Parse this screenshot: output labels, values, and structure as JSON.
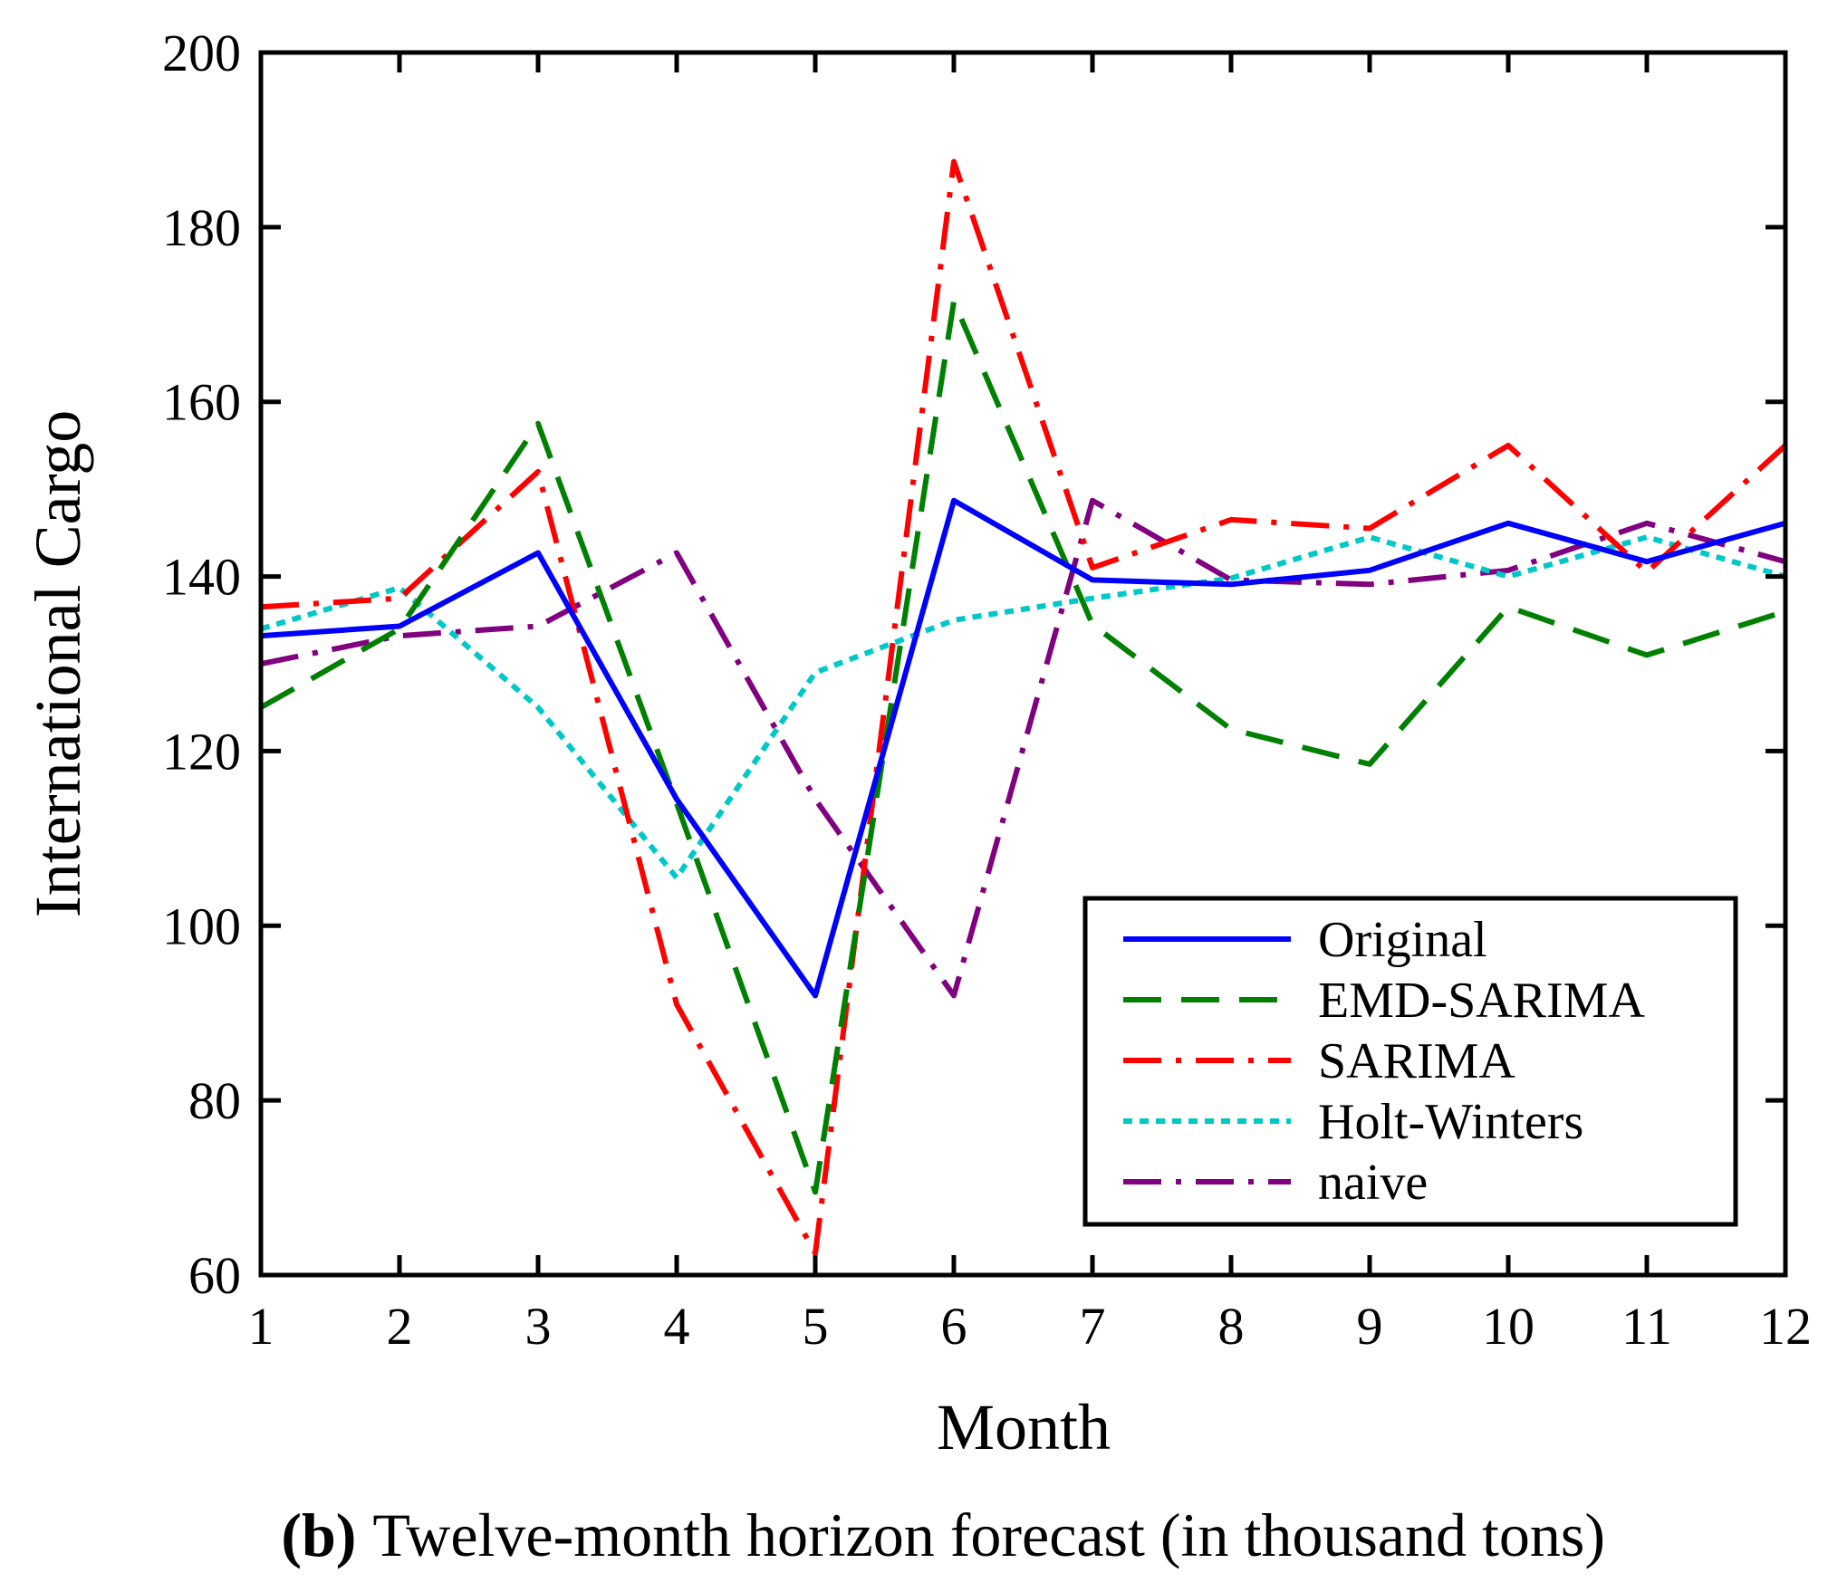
{
  "chart_data": {
    "type": "line",
    "xlabel": "Month",
    "ylabel": "International Cargo",
    "x": [
      1,
      2,
      3,
      4,
      5,
      6,
      7,
      8,
      9,
      10,
      11,
      12
    ],
    "xticks": [
      1,
      2,
      3,
      4,
      5,
      6,
      7,
      8,
      9,
      10,
      11,
      12
    ],
    "yticks": [
      60,
      80,
      100,
      120,
      140,
      160,
      180,
      200
    ],
    "xlim": [
      1,
      12
    ],
    "ylim": [
      60,
      200
    ],
    "grid": false,
    "legend_position": "bottom-right",
    "series": [
      {
        "name": "Original",
        "color": "#0000ff",
        "style": "solid",
        "values": [
          133.2,
          134.3,
          142.7,
          114.5,
          92.0,
          148.7,
          139.6,
          139.1,
          140.7,
          146.1,
          141.7,
          146.1
        ]
      },
      {
        "name": "EMD-SARIMA",
        "color": "#008000",
        "style": "dashed",
        "values": [
          125.0,
          134.0,
          157.5,
          114.0,
          69.5,
          171.5,
          134.5,
          122.5,
          118.5,
          136.5,
          131.0,
          136.0
        ]
      },
      {
        "name": "SARIMA",
        "color": "#ff0000",
        "style": "dashdot",
        "values": [
          136.5,
          137.5,
          152.0,
          91.0,
          62.5,
          187.5,
          141.0,
          146.5,
          145.5,
          155.0,
          140.5,
          155.0
        ]
      },
      {
        "name": "Holt-Winters",
        "color": "#00c8c8",
        "style": "dotted",
        "values": [
          134.0,
          138.7,
          125.0,
          105.5,
          129.0,
          135.0,
          137.5,
          139.8,
          144.5,
          140.0,
          144.5,
          140.0
        ]
      },
      {
        "name": "naive",
        "color": "#800080",
        "style": "dashdot",
        "values": [
          130.0,
          133.2,
          134.3,
          142.7,
          114.5,
          92.0,
          148.7,
          139.6,
          139.1,
          140.7,
          146.1,
          141.7
        ]
      }
    ]
  },
  "caption": {
    "label": "(b)",
    "text": "Twelve-month horizon forecast (in thousand tons)"
  }
}
